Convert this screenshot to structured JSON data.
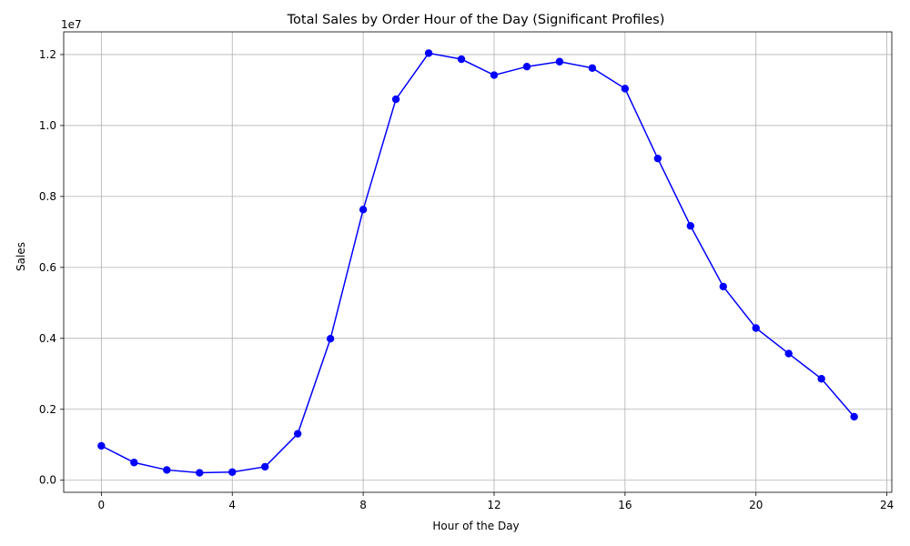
{
  "chart_data": {
    "type": "line",
    "title": "Total Sales by Order Hour of the Day (Significant Profiles)",
    "xlabel": "Hour of the Day",
    "ylabel": "Sales",
    "scale_label": "1e7",
    "x": [
      0,
      1,
      2,
      3,
      4,
      5,
      6,
      7,
      8,
      9,
      10,
      11,
      12,
      13,
      14,
      15,
      16,
      17,
      18,
      19,
      20,
      21,
      22,
      23
    ],
    "series": [
      {
        "values": [
          970000,
          500000,
          290000,
          210000,
          230000,
          380000,
          1310000,
          3990000,
          7630000,
          10740000,
          12040000,
          11870000,
          11420000,
          11660000,
          11800000,
          11620000,
          11040000,
          9070000,
          7170000,
          5460000,
          4290000,
          3570000,
          2860000,
          1790000
        ],
        "color": "#0000ff",
        "marker": "circle"
      }
    ],
    "xlim": [
      -1.15,
      24.15
    ],
    "ylim": [
      -340000,
      12640000
    ],
    "x_ticks": [
      0,
      4,
      8,
      12,
      16,
      20,
      24
    ],
    "x_tick_labels": [
      "0",
      "4",
      "8",
      "12",
      "16",
      "20",
      "24"
    ],
    "y_ticks": [
      0,
      2000000,
      4000000,
      6000000,
      8000000,
      10000000,
      12000000
    ],
    "y_tick_labels": [
      "0.0",
      "0.2",
      "0.4",
      "0.6",
      "0.8",
      "1.0",
      "1.2"
    ],
    "grid": true,
    "legend": "none"
  }
}
